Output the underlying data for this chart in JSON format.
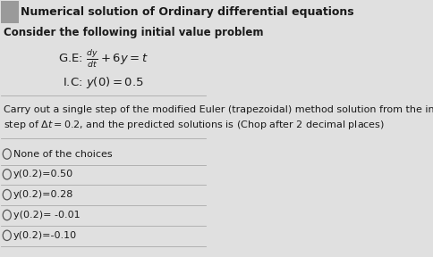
{
  "background_color": "#e0e0e0",
  "header_box_color": "#9a9a9a",
  "title": "Numerical solution of Ordinary differential equations",
  "subtitle": "Consider the following initial value problem",
  "body_text_line1": "Carry out a single step of the modified Euler (trapezoidal) method solution from the initial condition with a time",
  "body_text_line2": "step of $\\Delta t = 0.2$, and the predicted solutions is (Chop after 2 decimal places)",
  "options": [
    "None of the choices",
    "y(0.2)=0.50",
    "y(0.2)=0.28",
    "y(0.2)= -0.01",
    "y(0.2)=-0.10"
  ],
  "divider_color": "#aaaaaa",
  "text_color": "#1a1a1a",
  "font_size_title": 9.0,
  "font_size_subtitle": 8.5,
  "font_size_body": 8.0,
  "font_size_math": 9.5,
  "font_size_options": 8.0
}
